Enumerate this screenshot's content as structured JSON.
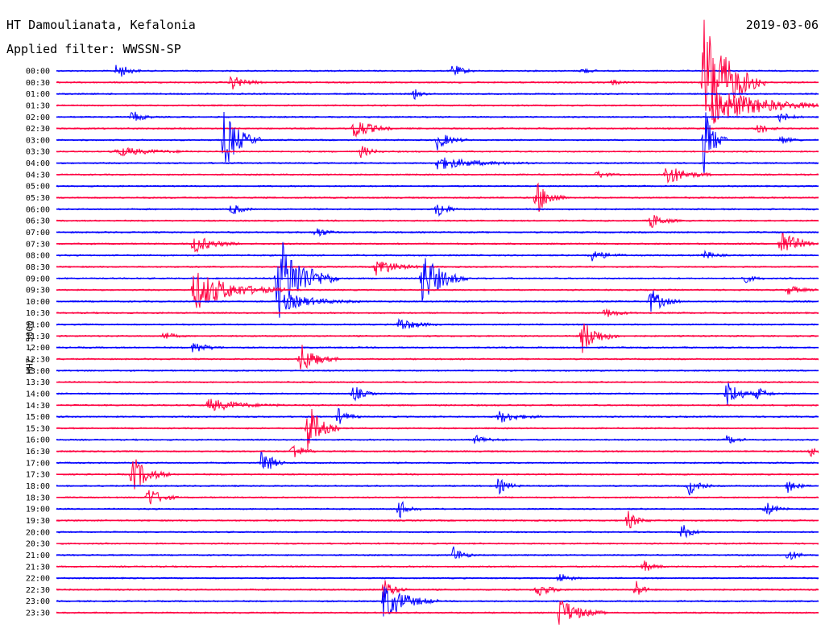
{
  "header": {
    "station": "HT Damoulianata, Kefalonia",
    "filter": "Applied filter: WWSSN-SP",
    "date": "2019-03-06"
  },
  "axis_label": "HHZ - 5000",
  "colors": {
    "a": "#0000ff",
    "b": "#ff0040"
  },
  "chart_data": {
    "type": "seismogram-helicorder",
    "title": "HT Damoulianata, Kefalonia",
    "subtitle": "Applied filter: WWSSN-SP",
    "date": "2019-03-06",
    "channel": "HHZ",
    "scale": 5000,
    "trace_interval_minutes": 30,
    "color_pattern": [
      "blue",
      "red"
    ],
    "trace_labels": [
      "00:00",
      "00:30",
      "01:00",
      "01:30",
      "02:00",
      "02:30",
      "03:00",
      "03:30",
      "04:00",
      "04:30",
      "05:00",
      "05:30",
      "06:00",
      "06:30",
      "07:00",
      "07:30",
      "08:00",
      "08:30",
      "09:00",
      "09:30",
      "10:00",
      "10:30",
      "11:00",
      "11:30",
      "12:00",
      "12:30",
      "13:00",
      "13:30",
      "14:00",
      "14:30",
      "15:00",
      "15:30",
      "16:00",
      "16:30",
      "17:00",
      "17:30",
      "18:00",
      "18:30",
      "19:00",
      "19:30",
      "20:00",
      "20:30",
      "21:00",
      "21:30",
      "22:00",
      "22:30",
      "23:00",
      "23:30"
    ],
    "events": [
      {
        "line": 0,
        "pos": 0.08,
        "amp": 12,
        "dur": 0.03
      },
      {
        "line": 0,
        "pos": 0.52,
        "amp": 9,
        "dur": 0.03
      },
      {
        "line": 0,
        "pos": 0.69,
        "amp": 5,
        "dur": 0.02
      },
      {
        "line": 1,
        "pos": 0.23,
        "amp": 10,
        "dur": 0.04
      },
      {
        "line": 1,
        "pos": 0.85,
        "amp": 86,
        "dur": 0.08
      },
      {
        "line": 1,
        "pos": 0.73,
        "amp": 4,
        "dur": 0.02
      },
      {
        "line": 2,
        "pos": 0.47,
        "amp": 6,
        "dur": 0.02
      },
      {
        "line": 3,
        "pos": 0.86,
        "amp": 24,
        "dur": 0.16
      },
      {
        "line": 4,
        "pos": 0.1,
        "amp": 8,
        "dur": 0.03
      },
      {
        "line": 4,
        "pos": 0.95,
        "amp": 7,
        "dur": 0.03
      },
      {
        "line": 5,
        "pos": 0.39,
        "amp": 16,
        "dur": 0.05
      },
      {
        "line": 5,
        "pos": 0.92,
        "amp": 8,
        "dur": 0.03
      },
      {
        "line": 6,
        "pos": 0.22,
        "amp": 38,
        "dur": 0.05
      },
      {
        "line": 6,
        "pos": 0.5,
        "amp": 12,
        "dur": 0.04
      },
      {
        "line": 6,
        "pos": 0.85,
        "amp": 44,
        "dur": 0.03
      },
      {
        "line": 6,
        "pos": 0.95,
        "amp": 6,
        "dur": 0.03
      },
      {
        "line": 7,
        "pos": 0.08,
        "amp": 6,
        "dur": 0.1
      },
      {
        "line": 7,
        "pos": 0.4,
        "amp": 8,
        "dur": 0.03
      },
      {
        "line": 8,
        "pos": 0.5,
        "amp": 8,
        "dur": 0.12
      },
      {
        "line": 9,
        "pos": 0.8,
        "amp": 14,
        "dur": 0.06
      },
      {
        "line": 9,
        "pos": 0.71,
        "amp": 5,
        "dur": 0.03
      },
      {
        "line": 11,
        "pos": 0.63,
        "amp": 22,
        "dur": 0.04
      },
      {
        "line": 12,
        "pos": 0.23,
        "amp": 8,
        "dur": 0.03
      },
      {
        "line": 12,
        "pos": 0.5,
        "amp": 12,
        "dur": 0.03
      },
      {
        "line": 13,
        "pos": 0.78,
        "amp": 10,
        "dur": 0.04
      },
      {
        "line": 14,
        "pos": 0.34,
        "amp": 8,
        "dur": 0.03
      },
      {
        "line": 15,
        "pos": 0.18,
        "amp": 12,
        "dur": 0.06
      },
      {
        "line": 15,
        "pos": 0.95,
        "amp": 20,
        "dur": 0.05
      },
      {
        "line": 16,
        "pos": 0.7,
        "amp": 8,
        "dur": 0.05
      },
      {
        "line": 16,
        "pos": 0.85,
        "amp": 6,
        "dur": 0.03
      },
      {
        "line": 17,
        "pos": 0.42,
        "amp": 12,
        "dur": 0.06
      },
      {
        "line": 18,
        "pos": 0.48,
        "amp": 35,
        "dur": 0.06
      },
      {
        "line": 18,
        "pos": 0.29,
        "amp": 58,
        "dur": 0.08
      },
      {
        "line": 18,
        "pos": 0.9,
        "amp": 7,
        "dur": 0.03
      },
      {
        "line": 19,
        "pos": 0.18,
        "amp": 26,
        "dur": 0.12
      },
      {
        "line": 19,
        "pos": 0.96,
        "amp": 6,
        "dur": 0.04
      },
      {
        "line": 20,
        "pos": 0.3,
        "amp": 10,
        "dur": 0.1
      },
      {
        "line": 20,
        "pos": 0.78,
        "amp": 16,
        "dur": 0.04
      },
      {
        "line": 21,
        "pos": 0.72,
        "amp": 6,
        "dur": 0.04
      },
      {
        "line": 22,
        "pos": 0.45,
        "amp": 9,
        "dur": 0.05
      },
      {
        "line": 23,
        "pos": 0.14,
        "amp": 6,
        "dur": 0.03
      },
      {
        "line": 23,
        "pos": 0.69,
        "amp": 22,
        "dur": 0.05
      },
      {
        "line": 24,
        "pos": 0.18,
        "amp": 8,
        "dur": 0.04
      },
      {
        "line": 25,
        "pos": 0.32,
        "amp": 20,
        "dur": 0.05
      },
      {
        "line": 28,
        "pos": 0.39,
        "amp": 11,
        "dur": 0.03
      },
      {
        "line": 28,
        "pos": 0.88,
        "amp": 18,
        "dur": 0.04
      },
      {
        "line": 28,
        "pos": 0.92,
        "amp": 8,
        "dur": 0.03
      },
      {
        "line": 29,
        "pos": 0.2,
        "amp": 8,
        "dur": 0.1
      },
      {
        "line": 30,
        "pos": 0.37,
        "amp": 10,
        "dur": 0.03
      },
      {
        "line": 30,
        "pos": 0.58,
        "amp": 8,
        "dur": 0.06
      },
      {
        "line": 31,
        "pos": 0.33,
        "amp": 34,
        "dur": 0.04
      },
      {
        "line": 32,
        "pos": 0.55,
        "amp": 6,
        "dur": 0.04
      },
      {
        "line": 32,
        "pos": 0.88,
        "amp": 6,
        "dur": 0.03
      },
      {
        "line": 33,
        "pos": 0.31,
        "amp": 12,
        "dur": 0.03
      },
      {
        "line": 33,
        "pos": 0.99,
        "amp": 8,
        "dur": 0.02
      },
      {
        "line": 34,
        "pos": 0.27,
        "amp": 20,
        "dur": 0.03
      },
      {
        "line": 35,
        "pos": 0.1,
        "amp": 24,
        "dur": 0.05
      },
      {
        "line": 36,
        "pos": 0.58,
        "amp": 10,
        "dur": 0.03
      },
      {
        "line": 36,
        "pos": 0.83,
        "amp": 12,
        "dur": 0.03
      },
      {
        "line": 36,
        "pos": 0.96,
        "amp": 8,
        "dur": 0.03
      },
      {
        "line": 37,
        "pos": 0.12,
        "amp": 14,
        "dur": 0.04
      },
      {
        "line": 38,
        "pos": 0.45,
        "amp": 12,
        "dur": 0.03
      },
      {
        "line": 38,
        "pos": 0.93,
        "amp": 10,
        "dur": 0.03
      },
      {
        "line": 39,
        "pos": 0.75,
        "amp": 12,
        "dur": 0.03
      },
      {
        "line": 40,
        "pos": 0.82,
        "amp": 11,
        "dur": 0.03
      },
      {
        "line": 42,
        "pos": 0.52,
        "amp": 12,
        "dur": 0.03
      },
      {
        "line": 42,
        "pos": 0.96,
        "amp": 8,
        "dur": 0.03
      },
      {
        "line": 43,
        "pos": 0.77,
        "amp": 8,
        "dur": 0.03
      },
      {
        "line": 44,
        "pos": 0.66,
        "amp": 7,
        "dur": 0.03
      },
      {
        "line": 45,
        "pos": 0.43,
        "amp": 14,
        "dur": 0.03
      },
      {
        "line": 45,
        "pos": 0.63,
        "amp": 10,
        "dur": 0.04
      },
      {
        "line": 45,
        "pos": 0.76,
        "amp": 14,
        "dur": 0.02
      },
      {
        "line": 46,
        "pos": 0.43,
        "amp": 24,
        "dur": 0.07
      },
      {
        "line": 47,
        "pos": 0.66,
        "amp": 20,
        "dur": 0.06
      }
    ]
  }
}
